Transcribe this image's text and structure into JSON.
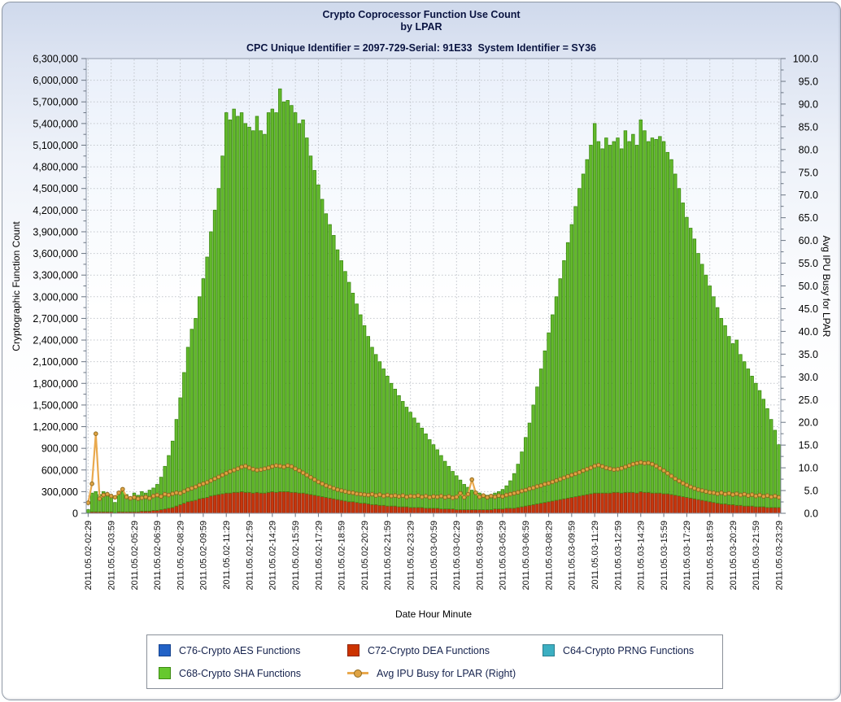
{
  "header": {
    "title_line1": "Crypto Coprocessor Function Use Count",
    "title_line2": "by LPAR",
    "subtitle": "CPC Unique Identifier = 2097-729-Serial: 91E33  System Identifier = SY36"
  },
  "colors": {
    "page_gradient_top": "#cfd9ec",
    "plot_gradient_top": "#e9effa",
    "grid": "#c2c6cc",
    "plot_border": "#8e98a8",
    "tick": "#6a7482",
    "title_text": "#0a1441",
    "legend_text": "#15224d",
    "aes_blue": "#2262c6",
    "dea_red": "#c8360d",
    "dea_red_edge": "#8f2608",
    "prng_teal": "#3cafc2",
    "sha_green": "#63b92c",
    "sha_green_edge": "#3c8a12",
    "ipu_orange_line": "#e9a94e",
    "ipu_orange_dot": "#dfa343",
    "ipu_orange_dot_edge": "#8f6a1d"
  },
  "legend": {
    "items": [
      {
        "slug": "c76-aes",
        "label": "C76-Crypto AES Functions",
        "type": "box",
        "color": "#2262c6",
        "edge": "#17448f"
      },
      {
        "slug": "c72-dea",
        "label": "C72-Crypto DEA Functions",
        "type": "box",
        "color": "#cc3300",
        "edge": "#8f2608"
      },
      {
        "slug": "c64-prng",
        "label": "C64-Crypto PRNG Functions",
        "type": "box",
        "color": "#3cafc2",
        "edge": "#2a7f8f"
      },
      {
        "slug": "c68-sha",
        "label": "C68-Crypto SHA Functions",
        "type": "box",
        "color": "#66c82e",
        "edge": "#3c8a12"
      },
      {
        "slug": "ipu-line",
        "label": "Avg IPU Busy for LPAR (Right)",
        "type": "line-marker",
        "color": "#e9a94e",
        "dot": "#dfa343",
        "dot_edge": "#8f6a1d"
      }
    ]
  },
  "chart_data": {
    "type": "bar",
    "subtype": "stacked bars with overlay line on right axis",
    "title": "Crypto Coprocessor Function Use Count by LPAR",
    "x_axis": {
      "label": "Date Hour Minute",
      "bars_per_tick": 6,
      "bar_interval_minutes": 15,
      "tick_labels": [
        "2011.05.02-02:29",
        "2011.05.02-03:59",
        "2011.05.02-05:29",
        "2011.05.02-06:59",
        "2011.05.02-08:29",
        "2011.05.02-09:59",
        "2011.05.02-11:29",
        "2011.05.02-12:59",
        "2011.05.02-14:29",
        "2011.05.02-15:59",
        "2011.05.02-17:29",
        "2011.05.02-18:59",
        "2011.05.02-20:29",
        "2011.05.02-21:59",
        "2011.05.02-23:29",
        "2011.05.03-00:59",
        "2011.05.03-02:29",
        "2011.05.03-03:59",
        "2011.05.03-05:29",
        "2011.05.03-06:59",
        "2011.05.03-08:29",
        "2011.05.03-09:59",
        "2011.05.03-11:29",
        "2011.05.03-12:59",
        "2011.05.03-14:29",
        "2011.05.03-15:59",
        "2011.05.03-17:29",
        "2011.05.03-18:59",
        "2011.05.03-20:29",
        "2011.05.03-21:59",
        "2011.05.03-23:29"
      ]
    },
    "y_left": {
      "label": "Cryptographic Function Count",
      "min": 0,
      "max": 6300000,
      "step": 300000,
      "minor_step": 150000
    },
    "y_right": {
      "label": "Avg IPU Busy for LPAR",
      "min": 0,
      "max": 100,
      "step": 5,
      "minor_step": 2.5
    },
    "grid": "dotted horizontal at each left-axis major step, dotted vertical at each labeled time tick",
    "legend_position": "bottom",
    "stack_order": [
      "dea",
      "sha"
    ],
    "series": {
      "aes": {
        "name": "C76-Crypto AES Functions",
        "axis": "left",
        "color": "#2262c6",
        "values_note": "no visible bars (approximately zero for all intervals)"
      },
      "prng": {
        "name": "C64-Crypto PRNG Functions",
        "axis": "left",
        "color": "#3cafc2",
        "values_note": "no visible bars (approximately zero for all intervals)"
      },
      "dea": {
        "name": "C72-Crypto DEA Functions",
        "axis": "left",
        "color": "#c8360d",
        "values": [
          10000,
          20000,
          20000,
          20000,
          20000,
          20000,
          20000,
          10000,
          20000,
          20000,
          20000,
          20000,
          20000,
          20000,
          30000,
          30000,
          30000,
          40000,
          40000,
          50000,
          60000,
          70000,
          80000,
          100000,
          120000,
          140000,
          160000,
          170000,
          180000,
          200000,
          210000,
          220000,
          240000,
          250000,
          260000,
          270000,
          280000,
          280000,
          290000,
          290000,
          300000,
          290000,
          290000,
          280000,
          290000,
          280000,
          280000,
          290000,
          300000,
          290000,
          300000,
          300000,
          300000,
          290000,
          290000,
          280000,
          280000,
          270000,
          260000,
          250000,
          240000,
          230000,
          220000,
          210000,
          200000,
          190000,
          180000,
          170000,
          160000,
          160000,
          150000,
          140000,
          140000,
          130000,
          120000,
          120000,
          110000,
          110000,
          100000,
          100000,
          100000,
          90000,
          90000,
          90000,
          80000,
          80000,
          80000,
          80000,
          70000,
          70000,
          70000,
          70000,
          60000,
          60000,
          60000,
          60000,
          50000,
          50000,
          50000,
          50000,
          50000,
          50000,
          50000,
          50000,
          50000,
          50000,
          60000,
          60000,
          60000,
          70000,
          70000,
          70000,
          80000,
          90000,
          100000,
          110000,
          120000,
          130000,
          140000,
          150000,
          160000,
          170000,
          180000,
          190000,
          200000,
          210000,
          220000,
          230000,
          240000,
          250000,
          260000,
          270000,
          280000,
          280000,
          280000,
          280000,
          280000,
          290000,
          290000,
          280000,
          290000,
          290000,
          290000,
          280000,
          300000,
          290000,
          290000,
          280000,
          280000,
          280000,
          270000,
          270000,
          260000,
          250000,
          240000,
          230000,
          220000,
          210000,
          200000,
          190000,
          180000,
          170000,
          160000,
          150000,
          140000,
          130000,
          130000,
          120000,
          120000,
          110000,
          110000,
          100000,
          100000,
          100000,
          90000,
          90000,
          90000,
          80000,
          80000,
          80000,
          80000
        ]
      },
      "sha": {
        "name": "C68-Crypto SHA Functions",
        "axis": "left",
        "color": "#63b92c",
        "values": [
          40000,
          260000,
          280000,
          240000,
          280000,
          260000,
          240000,
          140000,
          260000,
          280000,
          240000,
          200000,
          260000,
          230000,
          270000,
          250000,
          290000,
          310000,
          360000,
          450000,
          590000,
          730000,
          920000,
          1200000,
          1480000,
          1810000,
          2140000,
          2380000,
          2520000,
          2800000,
          3040000,
          3330000,
          3660000,
          3950000,
          4240000,
          4680000,
          5270000,
          5170000,
          5310000,
          5210000,
          5250000,
          5110000,
          5060000,
          5020000,
          5210000,
          5020000,
          4970000,
          5260000,
          5300000,
          5260000,
          5580000,
          5400000,
          5420000,
          5360000,
          5260000,
          5120000,
          5170000,
          4930000,
          4690000,
          4500000,
          4310000,
          4120000,
          3930000,
          3790000,
          3650000,
          3460000,
          3320000,
          3180000,
          3040000,
          2890000,
          2750000,
          2610000,
          2460000,
          2320000,
          2180000,
          2080000,
          1990000,
          1890000,
          1800000,
          1700000,
          1620000,
          1540000,
          1460000,
          1380000,
          1320000,
          1240000,
          1170000,
          1100000,
          1030000,
          950000,
          880000,
          810000,
          740000,
          660000,
          590000,
          520000,
          470000,
          410000,
          350000,
          310000,
          270000,
          250000,
          230000,
          210000,
          200000,
          210000,
          220000,
          240000,
          270000,
          310000,
          380000,
          480000,
          600000,
          760000,
          950000,
          1140000,
          1380000,
          1620000,
          1860000,
          2100000,
          2340000,
          2580000,
          2820000,
          3060000,
          3300000,
          3540000,
          3780000,
          4020000,
          4260000,
          4450000,
          4640000,
          4830000,
          5120000,
          4870000,
          4770000,
          4920000,
          4820000,
          4860000,
          4910000,
          4770000,
          5010000,
          4860000,
          4960000,
          4820000,
          5150000,
          5010000,
          4860000,
          4920000,
          4900000,
          4940000,
          4880000,
          4730000,
          4640000,
          4450000,
          4260000,
          4070000,
          3880000,
          3740000,
          3600000,
          3410000,
          3270000,
          3130000,
          2990000,
          2850000,
          2710000,
          2570000,
          2470000,
          2330000,
          2230000,
          2290000,
          2090000,
          2000000,
          1900000,
          1800000,
          1710000,
          1610000,
          1490000,
          1370000,
          1220000,
          1070000,
          870000
        ]
      },
      "ipu": {
        "name": "Avg IPU Busy for LPAR (Right)",
        "axis": "right",
        "color": "#e9a94e",
        "values": [
          2.3,
          6.5,
          17.5,
          3.2,
          4.0,
          4.2,
          3.8,
          3.5,
          4.5,
          5.3,
          3.6,
          3.3,
          3.5,
          3.2,
          3.4,
          3.6,
          3.3,
          3.8,
          4.0,
          3.7,
          4.2,
          4.0,
          4.3,
          4.5,
          4.4,
          4.8,
          5.2,
          5.5,
          5.8,
          6.2,
          6.5,
          6.8,
          7.2,
          7.6,
          8.0,
          8.4,
          8.8,
          9.2,
          9.5,
          9.8,
          10.2,
          10.4,
          10.0,
          9.7,
          9.5,
          9.6,
          9.8,
          10.0,
          10.3,
          10.5,
          10.4,
          10.2,
          10.5,
          10.3,
          9.8,
          9.4,
          8.9,
          8.4,
          7.9,
          7.4,
          6.9,
          6.5,
          6.1,
          5.8,
          5.5,
          5.2,
          5.0,
          4.8,
          4.6,
          4.5,
          4.3,
          4.2,
          4.1,
          4.0,
          4.2,
          3.9,
          4.1,
          3.8,
          4.0,
          3.8,
          3.9,
          3.7,
          3.9,
          3.6,
          3.8,
          3.7,
          3.9,
          3.6,
          3.8,
          3.5,
          3.7,
          3.6,
          3.8,
          3.5,
          3.7,
          3.4,
          3.6,
          4.4,
          3.5,
          4.2,
          7.4,
          4.5,
          3.6,
          3.9,
          3.5,
          3.8,
          3.6,
          3.9,
          3.7,
          4.0,
          4.2,
          4.4,
          4.6,
          4.9,
          5.1,
          5.4,
          5.6,
          5.9,
          6.1,
          6.4,
          6.6,
          6.9,
          7.2,
          7.5,
          7.8,
          8.1,
          8.4,
          8.7,
          9.0,
          9.4,
          9.7,
          10.0,
          10.4,
          10.6,
          10.3,
          10.0,
          9.8,
          9.6,
          9.7,
          9.9,
          10.2,
          10.5,
          10.8,
          11.0,
          11.2,
          11.0,
          11.1,
          10.8,
          10.4,
          9.9,
          9.4,
          8.8,
          8.2,
          7.6,
          7.1,
          6.6,
          6.2,
          5.8,
          5.5,
          5.2,
          5.0,
          4.8,
          4.6,
          4.5,
          4.3,
          4.5,
          4.2,
          4.4,
          4.1,
          4.3,
          4.0,
          4.2,
          3.9,
          4.1,
          3.8,
          4.0,
          3.7,
          3.9,
          3.6,
          3.8,
          3.5
        ]
      }
    }
  }
}
